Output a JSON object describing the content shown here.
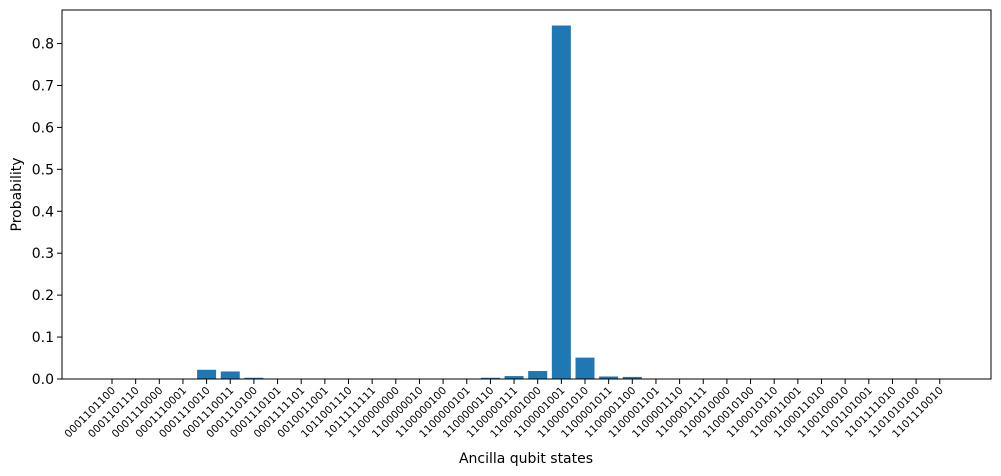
{
  "chart_data": {
    "type": "bar",
    "title": "",
    "xlabel": "Ancilla qubit states",
    "ylabel": "Probability",
    "ylim": [
      0,
      0.88
    ],
    "yticks": [
      0.0,
      0.1,
      0.2,
      0.3,
      0.4,
      0.5,
      0.6,
      0.7,
      0.8
    ],
    "ytick_labels": [
      "0.0",
      "0.1",
      "0.2",
      "0.3",
      "0.4",
      "0.5",
      "0.6",
      "0.7",
      "0.8"
    ],
    "grid": false,
    "bar_color": "#1f77b4",
    "categories": [
      "0001101100",
      "0001101110",
      "0001110000",
      "0001110001",
      "0001110010",
      "0001110011",
      "0001110100",
      "0001110101",
      "0001111101",
      "0010011001",
      "1011001110",
      "1011111111",
      "1100000000",
      "1100000010",
      "1100000100",
      "1100000101",
      "1100000110",
      "1100000111",
      "1100001000",
      "1100001001",
      "1100001010",
      "1100001011",
      "1100001100",
      "1100001101",
      "1100001110",
      "1100001111",
      "1100010000",
      "1100010100",
      "1100010110",
      "1100011001",
      "1100011010",
      "1100100010",
      "1101101001",
      "1101111010",
      "1101010100",
      "1101110010"
    ],
    "values": [
      0.0005,
      0.0005,
      0.0005,
      0.0005,
      0.022,
      0.018,
      0.003,
      0.0008,
      0.0005,
      0.0005,
      0.0005,
      0.0005,
      0.0005,
      0.0005,
      0.0005,
      0.0005,
      0.003,
      0.007,
      0.019,
      0.843,
      0.051,
      0.006,
      0.005,
      0.0008,
      0.0005,
      0.0005,
      0.0005,
      0.0005,
      0.0005,
      0.0005,
      0.0005,
      0.0005,
      0.0005,
      0.0005,
      0.0005,
      0.0005
    ],
    "xtick_labels": [
      "0001101100",
      "0001101110",
      "0001110000",
      "0001110001",
      "0001110010",
      "0001110011",
      "0001110100",
      "0001110101",
      "0001111101",
      "0010011001",
      "1011001110",
      "1011111111",
      "1100000000",
      "1100000010",
      "1100000100",
      "1100000101",
      "1100000110",
      "1100000111",
      "1100001000",
      "1100001001",
      "1100001010",
      "1100001011",
      "1100001100",
      "1100001101",
      "1100001110",
      "1100001111",
      "1100010000",
      "1100010100",
      "1100010110",
      "1100011001",
      "1100011010",
      "1100100010",
      "1101101001",
      "1101111010",
      "1101010100",
      "1101110010"
    ]
  }
}
